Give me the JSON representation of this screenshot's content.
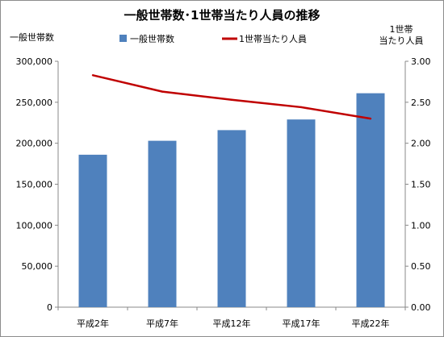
{
  "chart_data": {
    "type": "bar+line",
    "title": "一般世帯数･1世帯当たり人員の推移",
    "categories": [
      "平成2年",
      "平成7年",
      "平成12年",
      "平成17年",
      "平成22年"
    ],
    "y_left": {
      "label": "一般世帯数",
      "range": [
        0,
        300000
      ],
      "ticks": [
        "0",
        "50,000",
        "100,000",
        "150,000",
        "200,000",
        "250,000",
        "300,000"
      ]
    },
    "y_right": {
      "label_line1": "1世帯",
      "label_line2": "当たり人員",
      "range": [
        0,
        3.0
      ],
      "ticks": [
        "0.00",
        "0.50",
        "1.00",
        "1.50",
        "2.00",
        "2.50",
        "3.00"
      ]
    },
    "series": [
      {
        "name": "一般世帯数",
        "kind": "bar",
        "axis": "left",
        "color": "#4f81bd",
        "values": [
          186000,
          203000,
          216000,
          229000,
          261000
        ]
      },
      {
        "name": "1世帯当たり人員",
        "kind": "line",
        "axis": "right",
        "color": "#c00000",
        "values": [
          2.83,
          2.63,
          2.53,
          2.44,
          2.3
        ]
      }
    ],
    "grid": false,
    "legend_position": "top"
  }
}
